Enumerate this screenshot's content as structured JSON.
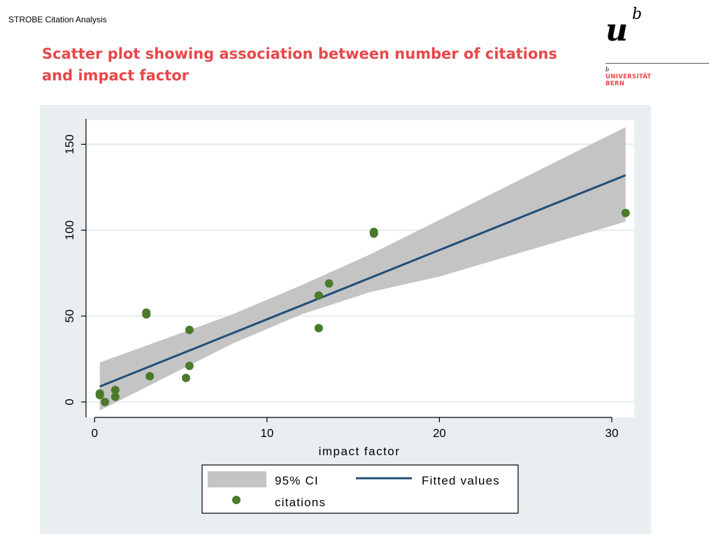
{
  "header": {
    "running_title": "STROBE Citation Analysis"
  },
  "title": {
    "line1": "Scatter plot showing association between number of citations",
    "line2": "and impact factor"
  },
  "logo": {
    "brand_letter": "u",
    "superscript": "b",
    "small_mark": "b",
    "line1": "UNIVERSITÄT",
    "line2": "BERN"
  },
  "colors": {
    "title": "#e8474a",
    "points": "#4a7a2a",
    "fit_line": "#1f4e79",
    "ci_band": "#c4c4c4",
    "panel": "#e9eff1"
  },
  "chart_data": {
    "type": "scatter",
    "xlabel": "impact factor",
    "ylabel": "",
    "xlim": [
      -0.5,
      31.3
    ],
    "ylim": [
      -9,
      164
    ],
    "xticks": [
      0,
      10,
      20,
      30
    ],
    "yticks": [
      0,
      50,
      100,
      150
    ],
    "grid": true,
    "legend_position": "bottom",
    "legend": {
      "ci": "95% CI",
      "fit": "Fitted values",
      "points": "citations"
    },
    "points": [
      {
        "x": 0.3,
        "y": 4
      },
      {
        "x": 0.3,
        "y": 5
      },
      {
        "x": 0.6,
        "y": 0
      },
      {
        "x": 1.2,
        "y": 3
      },
      {
        "x": 1.2,
        "y": 7
      },
      {
        "x": 3.0,
        "y": 51
      },
      {
        "x": 3.0,
        "y": 52
      },
      {
        "x": 3.2,
        "y": 15
      },
      {
        "x": 5.3,
        "y": 14
      },
      {
        "x": 5.5,
        "y": 21
      },
      {
        "x": 5.5,
        "y": 42
      },
      {
        "x": 13.0,
        "y": 43
      },
      {
        "x": 13.0,
        "y": 62
      },
      {
        "x": 13.6,
        "y": 69
      },
      {
        "x": 16.2,
        "y": 98
      },
      {
        "x": 16.2,
        "y": 99
      },
      {
        "x": 30.8,
        "y": 110
      }
    ],
    "fit": {
      "x_start": 0.3,
      "x_end": 30.8,
      "y_start": 9,
      "y_end": 132
    },
    "ci": {
      "x": [
        0.3,
        8,
        12,
        16,
        20,
        30.8
      ],
      "upper": [
        23,
        51,
        68,
        86,
        106,
        160
      ],
      "lower": [
        -5,
        34,
        51,
        64,
        73,
        105
      ]
    }
  }
}
